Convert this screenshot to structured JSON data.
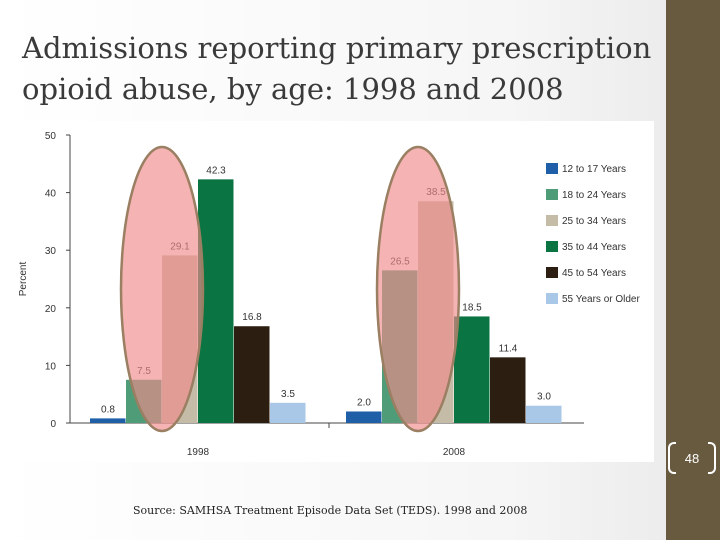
{
  "slide": {
    "title_line1": "Admissions reporting primary prescription",
    "title_line2": "opioid abuse, by age: 1998 and 2008",
    "source": "Source: SAMHSA Treatment Episode Data Set (TEDS). 1998 and 2008",
    "page_number": "48"
  },
  "chart_data": {
    "type": "bar",
    "title": "",
    "xlabel": "",
    "ylabel": "Percent",
    "ylim": [
      0,
      50
    ],
    "yticks": [
      0,
      10,
      20,
      30,
      40,
      50
    ],
    "categories": [
      "1998",
      "2008"
    ],
    "series": [
      {
        "name": "12 to 17 Years",
        "color": "#1f5fa8",
        "values": [
          0.8,
          2.0
        ],
        "labels": [
          "0.8",
          "2.0"
        ]
      },
      {
        "name": "18 to 24 Years",
        "color": "#4f9d78",
        "values": [
          7.5,
          26.5
        ],
        "labels": [
          "7.5",
          "26.5"
        ]
      },
      {
        "name": "25 to 34 Years",
        "color": "#c5bca8",
        "values": [
          29.1,
          38.5
        ],
        "labels": [
          "29.1",
          "38.5"
        ]
      },
      {
        "name": "35 to 44 Years",
        "color": "#0a7443",
        "values": [
          42.3,
          18.5
        ],
        "labels": [
          "42.3",
          "18.5"
        ]
      },
      {
        "name": "45 to 54 Years",
        "color": "#2c1f12",
        "values": [
          16.8,
          11.4
        ],
        "labels": [
          "16.8",
          "11.4"
        ]
      },
      {
        "name": "55 Years or Older",
        "color": "#a9c7e6",
        "values": [
          3.5,
          3.0
        ],
        "labels": [
          "3.5",
          "3.0"
        ]
      }
    ],
    "legend_position": "right",
    "grid": false,
    "highlight": {
      "shape": "ellipse",
      "color": "#f08a8a",
      "series": [
        "18 to 24 Years",
        "25 to 34 Years"
      ]
    }
  }
}
